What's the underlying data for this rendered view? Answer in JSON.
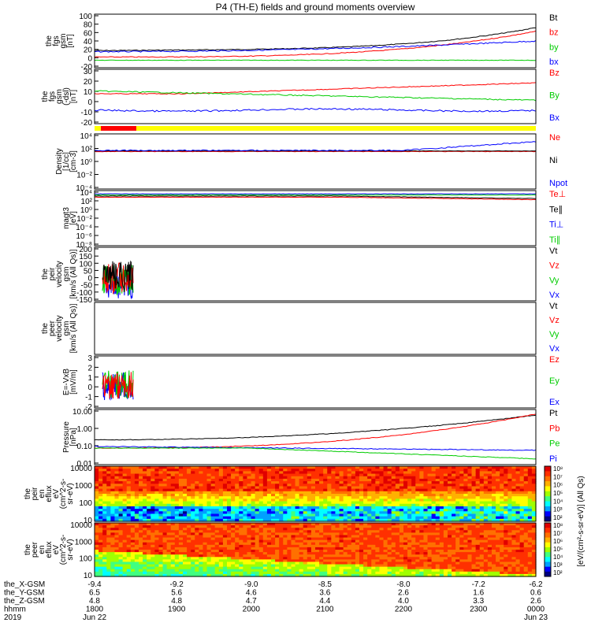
{
  "title": "P4 (TH-E) fields and ground moments overview",
  "colors": {
    "black": "#000000",
    "red": "#ff0000",
    "green": "#00cc00",
    "blue": "#0000ff",
    "yellow": "#ffff00"
  },
  "chart_data": [
    {
      "type": "line",
      "name": "fgs gsm",
      "ylabel": [
        "the",
        "fgs",
        "gsm",
        "[nT]"
      ],
      "yticks": [
        "100",
        "80",
        "60",
        "40",
        "20",
        "0",
        "-20"
      ],
      "ylim": [
        -20,
        100
      ],
      "legend": [
        {
          "label": "Bt",
          "color": "black"
        },
        {
          "label": "bz",
          "color": "red"
        },
        {
          "label": "by",
          "color": "green"
        },
        {
          "label": "bx",
          "color": "blue"
        }
      ]
    },
    {
      "type": "line",
      "name": "fgs gsm dsl",
      "ylabel": [
        "the",
        "fgs",
        "gsm",
        "(-dsl)",
        "[nT]"
      ],
      "yticks": [
        "30",
        "20",
        "10",
        "0",
        "-10",
        "-20"
      ],
      "ylim": [
        -25,
        30
      ],
      "legend": [
        {
          "label": "Bz",
          "color": "red"
        },
        {
          "label": "By",
          "color": "green"
        },
        {
          "label": "Bx",
          "color": "blue"
        }
      ]
    },
    {
      "type": "line",
      "name": "density",
      "ylabel": [
        "Density",
        "[1/cc]",
        "[cm-3]"
      ],
      "yticks": [
        "10⁴",
        "10²",
        "10⁰",
        "10⁻²",
        "10⁻⁴"
      ],
      "legend": [
        {
          "label": "Ne",
          "color": "red"
        },
        {
          "label": "Ni",
          "color": "black"
        },
        {
          "label": "Npot",
          "color": "blue"
        }
      ]
    },
    {
      "type": "line",
      "name": "temperature",
      "ylabel": [
        "magt3",
        "[eV]"
      ],
      "yticks": [
        "10⁴",
        "10²",
        "10⁰",
        "10⁻²",
        "10⁻⁴",
        "10⁻⁶",
        "10⁻⁸"
      ],
      "legend": [
        {
          "label": "Te⊥",
          "color": "red"
        },
        {
          "label": "Te∥",
          "color": "black"
        },
        {
          "label": "Ti⊥",
          "color": "blue"
        },
        {
          "label": "Ti∥",
          "color": "green"
        }
      ]
    },
    {
      "type": "line",
      "name": "peir velocity",
      "ylabel": [
        "the",
        "peir",
        "velocity",
        "gsm",
        "[km/s (All Qs)]"
      ],
      "yticks": [
        "200",
        "150",
        "100",
        "50",
        "0",
        "-50",
        "-100",
        "-150"
      ],
      "ylim": [
        -150,
        200
      ],
      "legend": [
        {
          "label": "Vt",
          "color": "black"
        },
        {
          "label": "Vz",
          "color": "red"
        },
        {
          "label": "Vy",
          "color": "green"
        },
        {
          "label": "Vx",
          "color": "blue"
        }
      ]
    },
    {
      "type": "line",
      "name": "peer velocity",
      "ylabel": [
        "the",
        "peer",
        "velocity",
        "gsm",
        "[km/s (All Qs)]"
      ],
      "yticks": [],
      "legend": [
        {
          "label": "Vt",
          "color": "black"
        },
        {
          "label": "Vz",
          "color": "red"
        },
        {
          "label": "Vy",
          "color": "green"
        },
        {
          "label": "Vx",
          "color": "blue"
        }
      ]
    },
    {
      "type": "line",
      "name": "E=-VxB",
      "ylabel": [
        "E=-VxB",
        "[mV/m]"
      ],
      "yticks": [
        "3",
        "2",
        "1",
        "0",
        "-1",
        "-2"
      ],
      "ylim": [
        -2,
        3
      ],
      "legend": [
        {
          "label": "Ez",
          "color": "red"
        },
        {
          "label": "Ey",
          "color": "green"
        },
        {
          "label": "Ex",
          "color": "blue"
        }
      ]
    },
    {
      "type": "line",
      "name": "pressure",
      "ylabel": [
        "Pressure",
        "[nPa]"
      ],
      "yticks": [
        "10.00",
        "1.00",
        "0.10",
        "0.01"
      ],
      "log": true,
      "legend": [
        {
          "label": "Pt",
          "color": "black"
        },
        {
          "label": "Pb",
          "color": "red"
        },
        {
          "label": "Pe",
          "color": "green"
        },
        {
          "label": "Pi",
          "color": "blue"
        }
      ]
    },
    {
      "type": "heatmap",
      "name": "peir en eflux",
      "ylabel": [
        "the",
        "peir",
        "en",
        "eflux",
        "eV",
        "(cm^2-s-",
        "sr-eV)"
      ],
      "yticks": [
        "10000",
        "1000",
        "100",
        "10"
      ]
    },
    {
      "type": "heatmap",
      "name": "peer en eflux",
      "ylabel": [
        "the",
        "peer",
        "en",
        "eflux",
        "eV",
        "(cm^2-s-",
        "sr-eV)"
      ],
      "yticks": [
        "10000",
        "1000",
        "100",
        "10"
      ]
    }
  ],
  "colorbar": {
    "ticks": [
      "10⁸",
      "10⁷",
      "10⁶",
      "10⁵",
      "10⁴",
      "10³",
      "10²"
    ],
    "label": "[eV/(cm²-s-sr-eV)] (All Qs)"
  },
  "xaxis": {
    "rows": [
      {
        "label": "the_X-GSM",
        "values": [
          "-9.4",
          "-9.2",
          "-9.0",
          "-8.5",
          "-8.0",
          "-7.2",
          "-6.2"
        ]
      },
      {
        "label": "the_Y-GSM",
        "values": [
          "6.5",
          "5.6",
          "4.6",
          "3.6",
          "2.6",
          "1.6",
          "0.6"
        ]
      },
      {
        "label": "the_Z-GSM",
        "values": [
          "4.8",
          "4.8",
          "4.7",
          "4.4",
          "4.0",
          "3.3",
          "2.6"
        ]
      },
      {
        "label": "hhmm",
        "values": [
          "1800",
          "1900",
          "2000",
          "2100",
          "2200",
          "2300",
          "0000"
        ]
      },
      {
        "label": "2019",
        "values": [
          "Jun 22",
          "",
          "",
          "",
          "",
          "",
          "Jun 23"
        ]
      }
    ]
  }
}
